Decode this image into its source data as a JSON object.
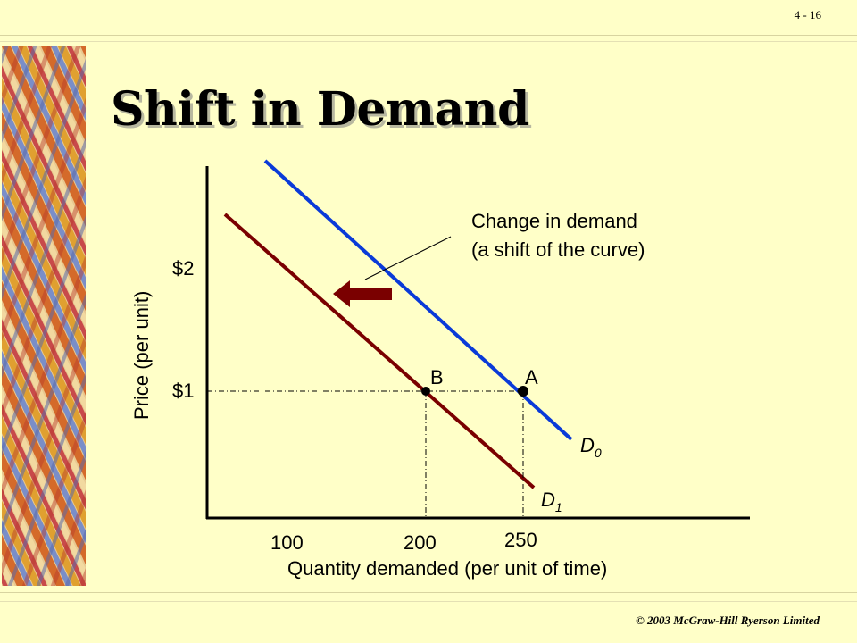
{
  "slide": {
    "page_number": "4 - 16",
    "title": "Shift in Demand",
    "footer": "© 2003 McGraw-Hill Ryerson Limited"
  },
  "chart_data": {
    "type": "line",
    "title": "Shift in Demand",
    "xlabel": "Quantity demanded (per unit of time)",
    "ylabel": "Price (per unit)",
    "x_ticks": [
      "100",
      "200",
      "250"
    ],
    "y_ticks": [
      "$2",
      "$1"
    ],
    "series": [
      {
        "name": "D0",
        "label_main": "D",
        "label_sub": "0",
        "color": "#0a3ad8"
      },
      {
        "name": "D1",
        "label_main": "D",
        "label_sub": "1",
        "color": "#7a0000"
      }
    ],
    "points": [
      {
        "label": "A",
        "x": 250,
        "y": 1
      },
      {
        "label": "B",
        "x": 200,
        "y": 1
      }
    ],
    "annotation": {
      "line1": "Change in demand",
      "line2": "(a shift of the curve)"
    },
    "arrow_color": "#7a0000",
    "grid": false
  }
}
